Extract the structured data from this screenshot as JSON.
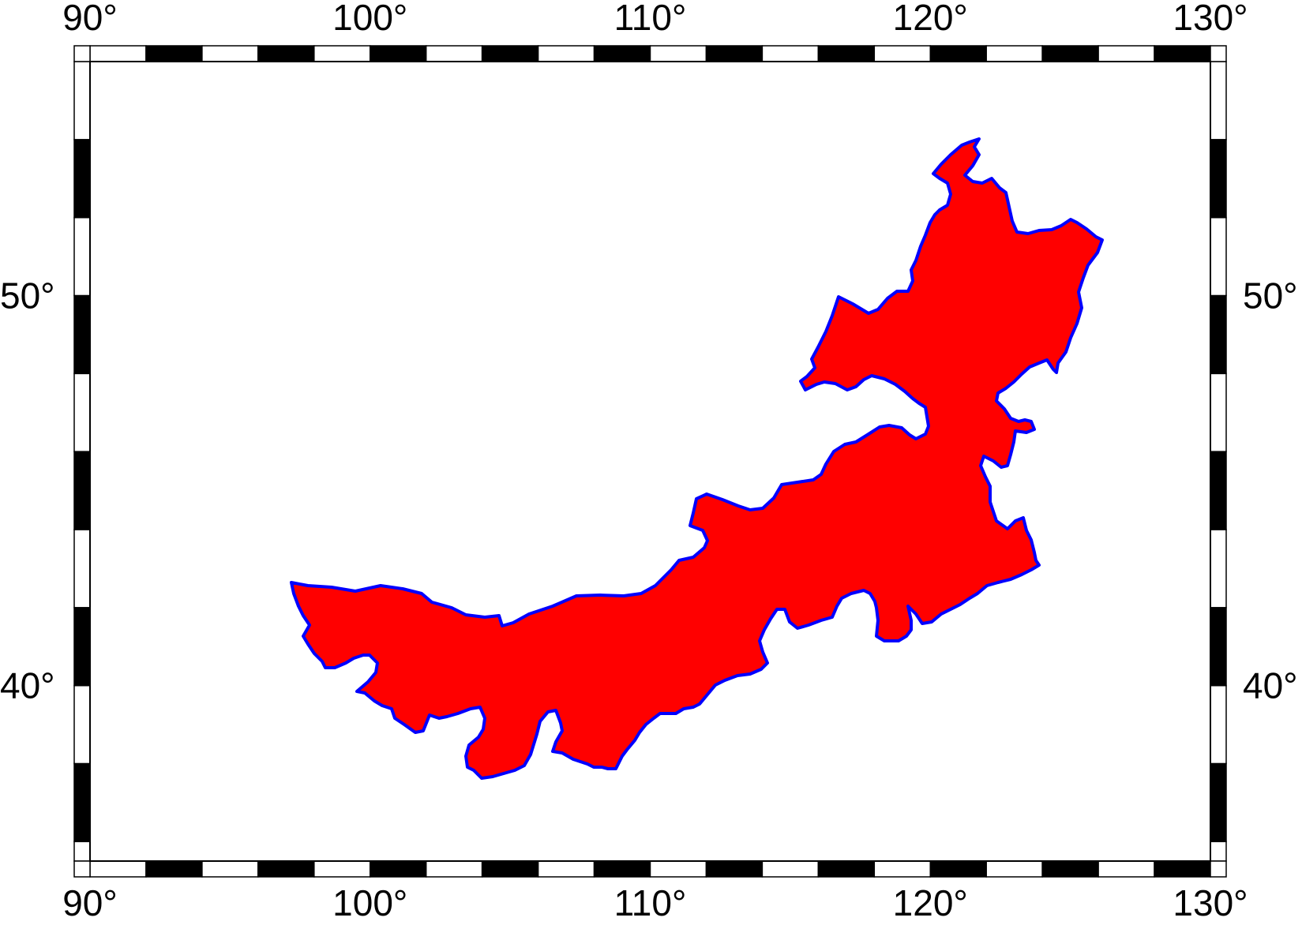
{
  "map": {
    "colors": {
      "fill": "#ff0000",
      "outline": "#0000ff",
      "frame": "#000000",
      "background": "#ffffff"
    },
    "lon_range": [
      90,
      130
    ],
    "lat_range": [
      35.5,
      56
    ],
    "top_ticks": [
      {
        "value": 90,
        "label": "90°"
      },
      {
        "value": 100,
        "label": "100°"
      },
      {
        "value": 110,
        "label": "110°"
      },
      {
        "value": 120,
        "label": "120°"
      },
      {
        "value": 130,
        "label": "130°"
      }
    ],
    "bottom_ticks": [
      {
        "value": 90,
        "label": "90°"
      },
      {
        "value": 100,
        "label": "100°"
      },
      {
        "value": 110,
        "label": "110°"
      },
      {
        "value": 120,
        "label": "120°"
      },
      {
        "value": 130,
        "label": "130°"
      }
    ],
    "left_ticks": [
      {
        "value": 50,
        "label": "50°"
      },
      {
        "value": 40,
        "label": "40°"
      }
    ],
    "right_ticks": [
      {
        "value": 50,
        "label": "50°"
      },
      {
        "value": 40,
        "label": "40°"
      }
    ]
  }
}
